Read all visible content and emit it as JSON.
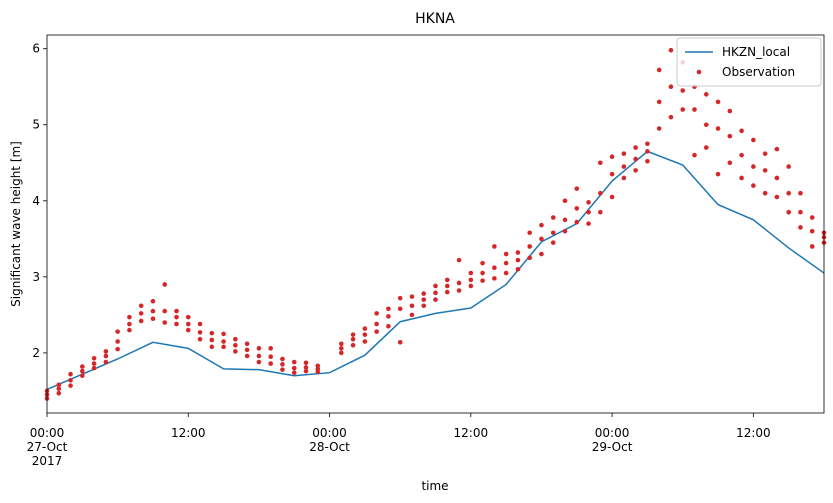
{
  "chart_data": {
    "type": "line_scatter",
    "title": "HKNA",
    "x_label": "time",
    "y_label": "Significant wave height [m]",
    "xlim": [
      "2017-10-27T00:00",
      "2017-10-29T18:00"
    ],
    "xticks": [
      {
        "value": "2017-10-27T00:00",
        "label": "00:00\n27-Oct\n2017"
      },
      {
        "value": "2017-10-27T12:00",
        "label": "12:00"
      },
      {
        "value": "2017-10-28T00:00",
        "label": "00:00\n28-Oct"
      },
      {
        "value": "2017-10-28T12:00",
        "label": "12:00"
      },
      {
        "value": "2017-10-29T00:00",
        "label": "00:00\n29-Oct"
      },
      {
        "value": "2017-10-29T12:00",
        "label": "12:00"
      }
    ],
    "ylim": [
      1.21,
      6.18
    ],
    "yticks": [
      2,
      3,
      4,
      5,
      6
    ],
    "grid": false,
    "legend": "upper right",
    "series": [
      {
        "name": "HKZN_local",
        "kind": "line",
        "color": "#1f77b4",
        "x": [
          "2017-10-27T00:00",
          "2017-10-27T03:00",
          "2017-10-27T06:00",
          "2017-10-27T09:00",
          "2017-10-27T12:00",
          "2017-10-27T15:00",
          "2017-10-27T18:00",
          "2017-10-27T21:00",
          "2017-10-28T00:00",
          "2017-10-28T03:00",
          "2017-10-28T06:00",
          "2017-10-28T09:00",
          "2017-10-28T12:00",
          "2017-10-28T15:00",
          "2017-10-28T18:00",
          "2017-10-28T21:00",
          "2017-10-29T00:00",
          "2017-10-29T03:00",
          "2017-10-29T06:00",
          "2017-10-29T09:00",
          "2017-10-29T12:00",
          "2017-10-29T15:00",
          "2017-10-29T18:00"
        ],
        "values": [
          1.52,
          1.72,
          1.92,
          2.14,
          2.06,
          1.79,
          1.78,
          1.7,
          1.74,
          1.97,
          2.41,
          2.52,
          2.59,
          2.9,
          3.46,
          3.7,
          4.26,
          4.65,
          4.47,
          3.95,
          3.75,
          3.38,
          3.05
        ]
      },
      {
        "name": "Observation",
        "kind": "scatter",
        "color": "#d62728",
        "x": [
          "2017-10-27T00:00",
          "2017-10-27T01:00",
          "2017-10-27T02:00",
          "2017-10-27T03:00",
          "2017-10-27T04:00",
          "2017-10-27T05:00",
          "2017-10-27T06:00",
          "2017-10-27T07:00",
          "2017-10-27T08:00",
          "2017-10-27T09:00",
          "2017-10-27T10:00",
          "2017-10-27T11:00",
          "2017-10-27T12:00",
          "2017-10-27T13:00",
          "2017-10-27T14:00",
          "2017-10-27T15:00",
          "2017-10-27T16:00",
          "2017-10-27T17:00",
          "2017-10-27T18:00",
          "2017-10-27T19:00",
          "2017-10-27T20:00",
          "2017-10-27T21:00",
          "2017-10-27T22:00",
          "2017-10-27T23:00",
          "2017-10-28T01:00",
          "2017-10-28T02:00",
          "2017-10-28T03:00",
          "2017-10-28T04:00",
          "2017-10-28T05:00",
          "2017-10-28T06:00",
          "2017-10-28T07:00",
          "2017-10-28T08:00",
          "2017-10-28T09:00",
          "2017-10-28T10:00",
          "2017-10-28T11:00",
          "2017-10-28T12:00",
          "2017-10-28T13:00",
          "2017-10-28T14:00",
          "2017-10-28T15:00",
          "2017-10-28T16:00",
          "2017-10-28T17:00",
          "2017-10-28T18:00",
          "2017-10-28T19:00",
          "2017-10-28T20:00",
          "2017-10-28T21:00",
          "2017-10-28T22:00",
          "2017-10-28T23:00",
          "2017-10-29T00:00",
          "2017-10-29T01:00",
          "2017-10-29T02:00",
          "2017-10-29T03:00",
          "2017-10-29T04:00",
          "2017-10-29T05:00",
          "2017-10-29T06:00",
          "2017-10-29T07:00",
          "2017-10-29T08:00",
          "2017-10-29T09:00",
          "2017-10-29T10:00",
          "2017-10-29T11:00",
          "2017-10-29T12:00",
          "2017-10-29T13:00",
          "2017-10-29T14:00",
          "2017-10-29T15:00",
          "2017-10-29T16:00",
          "2017-10-29T17:00",
          "2017-10-29T18:00"
        ],
        "values": [
          [
            1.4,
            1.45,
            1.5
          ],
          [
            1.47,
            1.53,
            1.58
          ],
          [
            1.57,
            1.64,
            1.72
          ],
          [
            1.7,
            1.76,
            1.82
          ],
          [
            1.8,
            1.86,
            1.93
          ],
          [
            1.88,
            1.96,
            2.02
          ],
          [
            2.05,
            2.15,
            2.28
          ],
          [
            2.3,
            2.38,
            2.47
          ],
          [
            2.42,
            2.52,
            2.62
          ],
          [
            2.45,
            2.55,
            2.68
          ],
          [
            2.4,
            2.55,
            2.9
          ],
          [
            2.38,
            2.47,
            2.55
          ],
          [
            2.3,
            2.38,
            2.47
          ],
          [
            2.18,
            2.27,
            2.38
          ],
          [
            2.08,
            2.17,
            2.26
          ],
          [
            2.08,
            2.15,
            2.25
          ],
          [
            2.02,
            2.1,
            2.18
          ],
          [
            1.96,
            2.04,
            2.12
          ],
          [
            1.88,
            1.96,
            2.06
          ],
          [
            1.86,
            1.95,
            2.06
          ],
          [
            1.78,
            1.85,
            1.92
          ],
          [
            1.74,
            1.8,
            1.88
          ],
          [
            1.76,
            1.81,
            1.87
          ],
          [
            1.75,
            1.79,
            1.83
          ],
          [
            2.0,
            2.06,
            2.12
          ],
          [
            2.1,
            2.18,
            2.24
          ],
          [
            2.15,
            2.24,
            2.32
          ],
          [
            2.28,
            2.38,
            2.52
          ],
          [
            2.35,
            2.48,
            2.58
          ],
          [
            2.14,
            2.58,
            2.72
          ],
          [
            2.5,
            2.62,
            2.74
          ],
          [
            2.62,
            2.7,
            2.78
          ],
          [
            2.7,
            2.79,
            2.88
          ],
          [
            2.8,
            2.88,
            2.96
          ],
          [
            2.82,
            2.92,
            3.22
          ],
          [
            2.88,
            2.96,
            3.05
          ],
          [
            2.95,
            3.05,
            3.18
          ],
          [
            2.98,
            3.12,
            3.4
          ],
          [
            3.05,
            3.18,
            3.3
          ],
          [
            3.1,
            3.22,
            3.32
          ],
          [
            3.25,
            3.4,
            3.58
          ],
          [
            3.3,
            3.5,
            3.68
          ],
          [
            3.45,
            3.58,
            3.78
          ],
          [
            3.6,
            3.75,
            4.0
          ],
          [
            3.72,
            3.9,
            4.16
          ],
          [
            3.7,
            3.85,
            3.98
          ],
          [
            3.85,
            4.1,
            4.5
          ],
          [
            4.05,
            4.35,
            4.58
          ],
          [
            4.3,
            4.45,
            4.62
          ],
          [
            4.4,
            4.55,
            4.7
          ],
          [
            4.52,
            4.65,
            4.75
          ],
          [
            4.95,
            5.3,
            5.72
          ],
          [
            5.1,
            5.5,
            5.98
          ],
          [
            5.2,
            5.45,
            5.82
          ],
          [
            4.6,
            5.2,
            5.5
          ],
          [
            4.7,
            5.0,
            5.4
          ],
          [
            4.35,
            4.95,
            5.3
          ],
          [
            4.5,
            4.85,
            5.18
          ],
          [
            4.3,
            4.6,
            4.92
          ],
          [
            4.2,
            4.45,
            4.8
          ],
          [
            4.1,
            4.4,
            4.62
          ],
          [
            4.05,
            4.3,
            4.68
          ],
          [
            3.85,
            4.1,
            4.45
          ],
          [
            3.65,
            3.85,
            4.1
          ],
          [
            3.4,
            3.6,
            3.78
          ],
          [
            3.45,
            3.52,
            3.58
          ],
          [
            3.3,
            3.34,
            3.38
          ]
        ]
      }
    ]
  }
}
